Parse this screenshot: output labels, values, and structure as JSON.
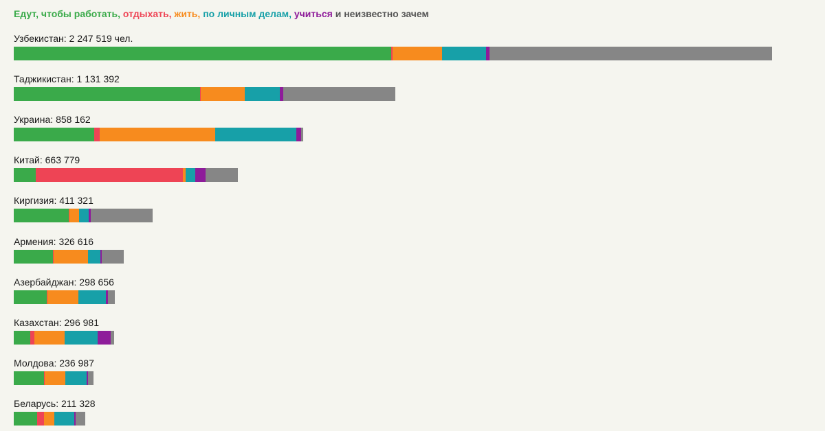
{
  "chart_data": {
    "type": "bar",
    "orientation": "horizontal",
    "stacked": true,
    "title_parts": [
      {
        "text": "Едут, чтобы работать",
        "color": "#3aaa4a"
      },
      {
        "text": ", ",
        "color": "#3aaa4a"
      },
      {
        "text": "отдыхать",
        "color": "#ee4455"
      },
      {
        "text": ", ",
        "color": "#ee4455"
      },
      {
        "text": "жить",
        "color": "#f78b1e"
      },
      {
        "text": ", ",
        "color": "#f78b1e"
      },
      {
        "text": "по личным делам",
        "color": "#17a0a8"
      },
      {
        "text": ", ",
        "color": "#17a0a8"
      },
      {
        "text": "учиться",
        "color": "#8e1c9a"
      },
      {
        "text": " и неизвестно зачем",
        "color": "#555555"
      }
    ],
    "series": [
      {
        "key": "work",
        "color": "#3aaa4a"
      },
      {
        "key": "rest",
        "color": "#ee4455"
      },
      {
        "key": "live",
        "color": "#f78b1e"
      },
      {
        "key": "personal",
        "color": "#17a0a8"
      },
      {
        "key": "study",
        "color": "#8e1c9a"
      },
      {
        "key": "unknown",
        "color": "#868686"
      }
    ],
    "xlim": [
      0,
      2247519
    ],
    "rows": [
      {
        "label": "Узбекистан: 2 247 519 чел.",
        "total": 2247519,
        "values": [
          1118000,
          4000,
          147000,
          130000,
          12000,
          836519
        ]
      },
      {
        "label": "Таджикистан: 1 131 392",
        "total": 1131392,
        "values": [
          553000,
          2000,
          130000,
          103000,
          10000,
          333392
        ]
      },
      {
        "label": "Украина: 858 162",
        "total": 858162,
        "values": [
          239000,
          16000,
          342000,
          240000,
          14000,
          7162
        ]
      },
      {
        "label": "Китай: 663 779",
        "total": 663779,
        "values": [
          65000,
          437000,
          8000,
          28000,
          30000,
          95779
        ]
      },
      {
        "label": "Киргизия: 411 321",
        "total": 411321,
        "values": [
          163000,
          2000,
          28000,
          29000,
          6000,
          183321
        ]
      },
      {
        "label": "Армения: 326 616",
        "total": 326616,
        "values": [
          117000,
          2000,
          102000,
          36000,
          4000,
          65616
        ]
      },
      {
        "label": "Азербайджан: 298 656",
        "total": 298656,
        "values": [
          98000,
          2000,
          92000,
          82000,
          6000,
          18656
        ]
      },
      {
        "label": "Казахстан: 296 981",
        "total": 296981,
        "values": [
          49000,
          12000,
          90000,
          98000,
          38000,
          9981
        ]
      },
      {
        "label": "Молдова: 236 987",
        "total": 236987,
        "values": [
          90000,
          2000,
          61000,
          63000,
          4000,
          16987
        ]
      },
      {
        "label": "Беларусь: 211 328",
        "total": 211328,
        "values": [
          69000,
          20000,
          31000,
          59000,
          4000,
          28328
        ]
      }
    ]
  }
}
